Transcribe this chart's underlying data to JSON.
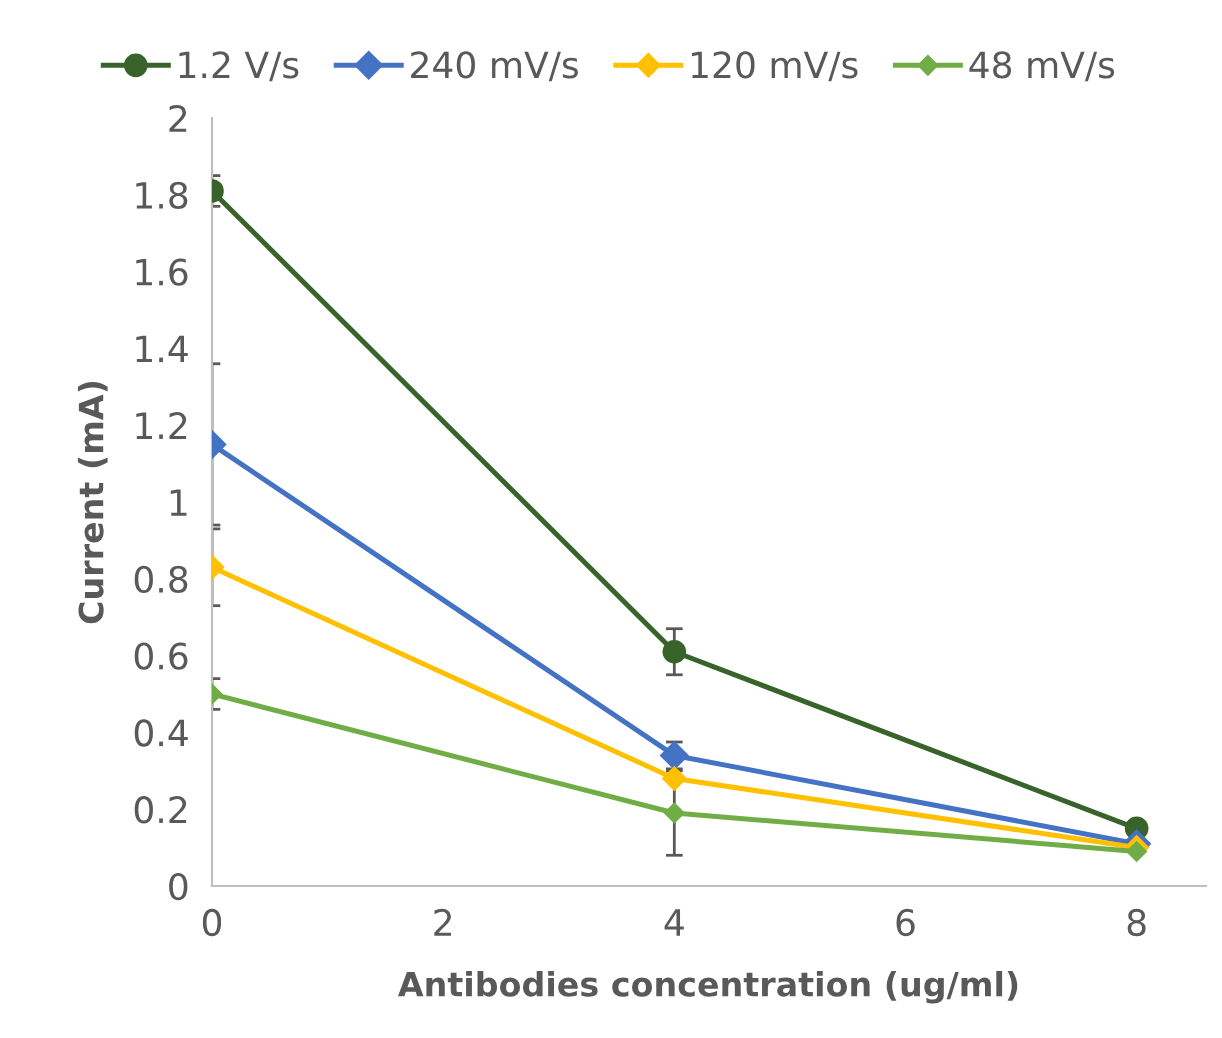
{
  "chart_data": {
    "type": "line",
    "xlabel": "Antibodies concentration (ug/ml)",
    "ylabel": "Current (mA)",
    "x": [
      0,
      4,
      8
    ],
    "series": [
      {
        "name": "1.2 V/s",
        "color": "#38632a",
        "marker": "circle",
        "values": [
          1.81,
          0.61,
          0.15
        ],
        "errors": [
          0.04,
          0.06,
          null
        ]
      },
      {
        "name": "240 mV/s",
        "color": "#4472c4",
        "marker": "diamond",
        "values": [
          1.15,
          0.34,
          0.11
        ],
        "errors": [
          0.21,
          0.035,
          null
        ]
      },
      {
        "name": "120 mV/s",
        "color": "#ffc000",
        "marker": "diamond",
        "values": [
          0.83,
          0.28,
          0.1
        ],
        "errors": [
          0.1,
          null,
          null
        ]
      },
      {
        "name": "48 mV/s",
        "color": "#70ad47",
        "marker": "diamond",
        "values": [
          0.5,
          0.19,
          0.09
        ],
        "errors": [
          0.04,
          0.11,
          null
        ]
      }
    ],
    "xlim": [
      0,
      8.6
    ],
    "xticks": [
      0,
      2,
      4,
      6,
      8
    ],
    "ylim": [
      0,
      2
    ],
    "yticks": [
      0,
      0.2,
      0.4,
      0.6,
      0.8,
      1,
      1.2,
      1.4,
      1.6,
      1.8,
      2
    ],
    "grid": false,
    "legend": "top",
    "line_style": "solid"
  }
}
